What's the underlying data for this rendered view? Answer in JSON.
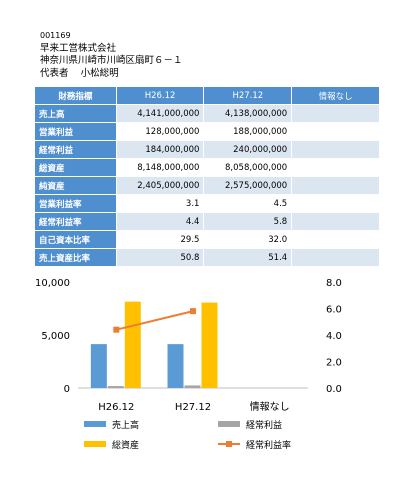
{
  "company": {
    "code": "001169",
    "name": "早来工営株式会社",
    "address": "神奈川県川崎市川崎区扇町６－１",
    "representative_label": "代表者",
    "representative": "小松総明"
  },
  "table": {
    "header_label": "財務指標",
    "columns": [
      "H26.12",
      "H27.12",
      "情報なし"
    ],
    "rows": [
      {
        "label": "売上高",
        "values": [
          "4,141,000,000",
          "4,138,000,000",
          ""
        ]
      },
      {
        "label": "営業利益",
        "values": [
          "128,000,000",
          "188,000,000",
          ""
        ]
      },
      {
        "label": "経常利益",
        "values": [
          "184,000,000",
          "240,000,000",
          ""
        ]
      },
      {
        "label": "総資産",
        "values": [
          "8,148,000,000",
          "8,058,000,000",
          ""
        ]
      },
      {
        "label": "純資産",
        "values": [
          "2,405,000,000",
          "2,575,000,000",
          ""
        ]
      },
      {
        "label": "営業利益率",
        "values": [
          "3.1",
          "4.5",
          ""
        ]
      },
      {
        "label": "経常利益率",
        "values": [
          "4.4",
          "5.8",
          ""
        ]
      },
      {
        "label": "自己資本比率",
        "values": [
          "29.5",
          "32.0",
          ""
        ]
      },
      {
        "label": "売上資産比率",
        "values": [
          "50.8",
          "51.4",
          ""
        ]
      }
    ]
  },
  "chart_data": {
    "type": "bar",
    "categories": [
      "H26.12",
      "H27.12",
      "情報なし"
    ],
    "series": [
      {
        "name": "売上高",
        "kind": "bar",
        "axis": "left",
        "color": "#5b9bd5",
        "values": [
          4141,
          4138,
          null
        ]
      },
      {
        "name": "経常利益",
        "kind": "bar",
        "axis": "left",
        "color": "#a5a5a5",
        "values": [
          184,
          240,
          null
        ]
      },
      {
        "name": "総資産",
        "kind": "bar",
        "axis": "left",
        "color": "#ffc000",
        "values": [
          8148,
          8058,
          null
        ]
      },
      {
        "name": "経常利益率",
        "kind": "line",
        "axis": "right",
        "color": "#ed7d31",
        "values": [
          4.4,
          5.8,
          null
        ]
      }
    ],
    "ylim": [
      0,
      10000
    ],
    "yticks": [
      "0",
      "5,000",
      "10,000"
    ],
    "ylim_right": [
      0,
      8
    ],
    "yticks_right": [
      "0.0",
      "2.0",
      "4.0",
      "6.0",
      "8.0"
    ],
    "legend": "bottom",
    "grid": false
  }
}
